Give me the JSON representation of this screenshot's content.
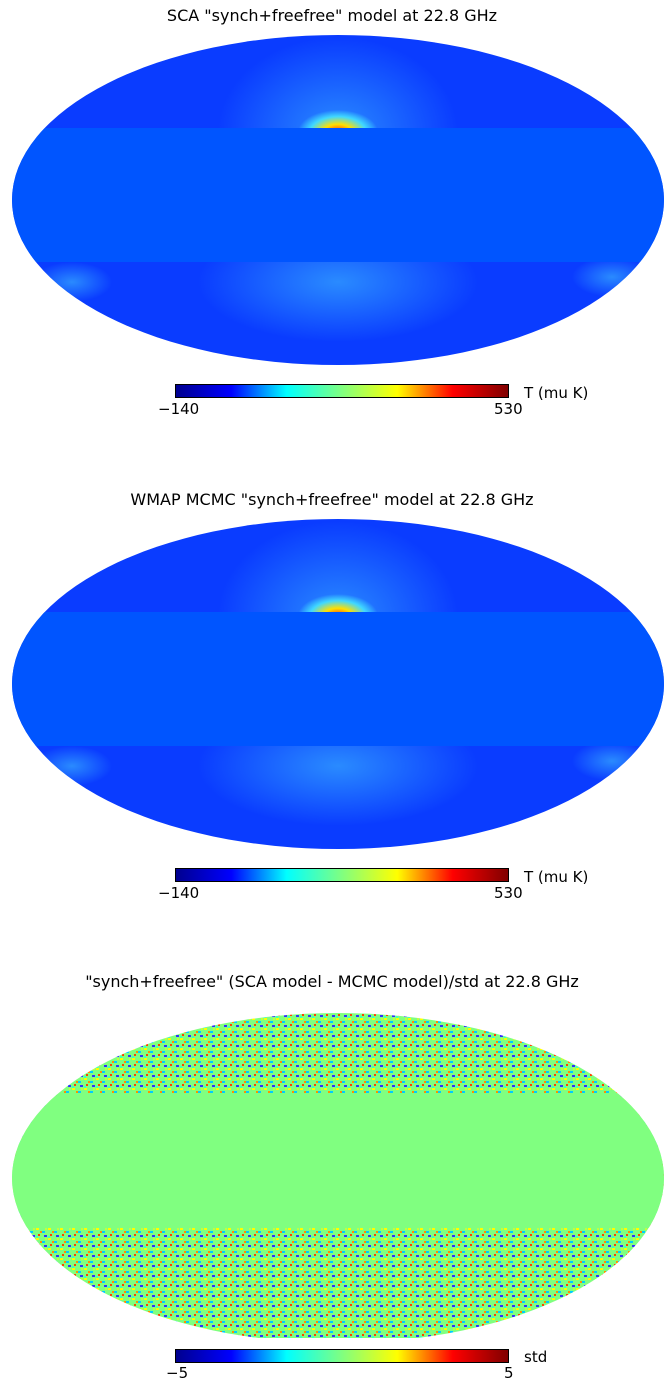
{
  "panels": [
    {
      "title": "SCA \"synch+freefree\" model at 22.8 GHz",
      "colorbar": {
        "min": "−140",
        "max": "530",
        "unit": "T (mu K)"
      },
      "mask_color": "#0055ff",
      "base_color": "#0a3cff"
    },
    {
      "title": "WMAP MCMC \"synch+freefree\" model at 22.8 GHz",
      "colorbar": {
        "min": "−140",
        "max": "530",
        "unit": "T (mu K)"
      },
      "mask_color": "#0055ff",
      "base_color": "#0a3cff"
    },
    {
      "title": "\"synch+freefree\" (SCA model - MCMC model)/std at 22.8 GHz",
      "colorbar": {
        "min": "−5",
        "max": "5",
        "unit": "std"
      },
      "mask_color": "#80ff80",
      "base_color": "#80ff80"
    }
  ],
  "colormap": "jet"
}
